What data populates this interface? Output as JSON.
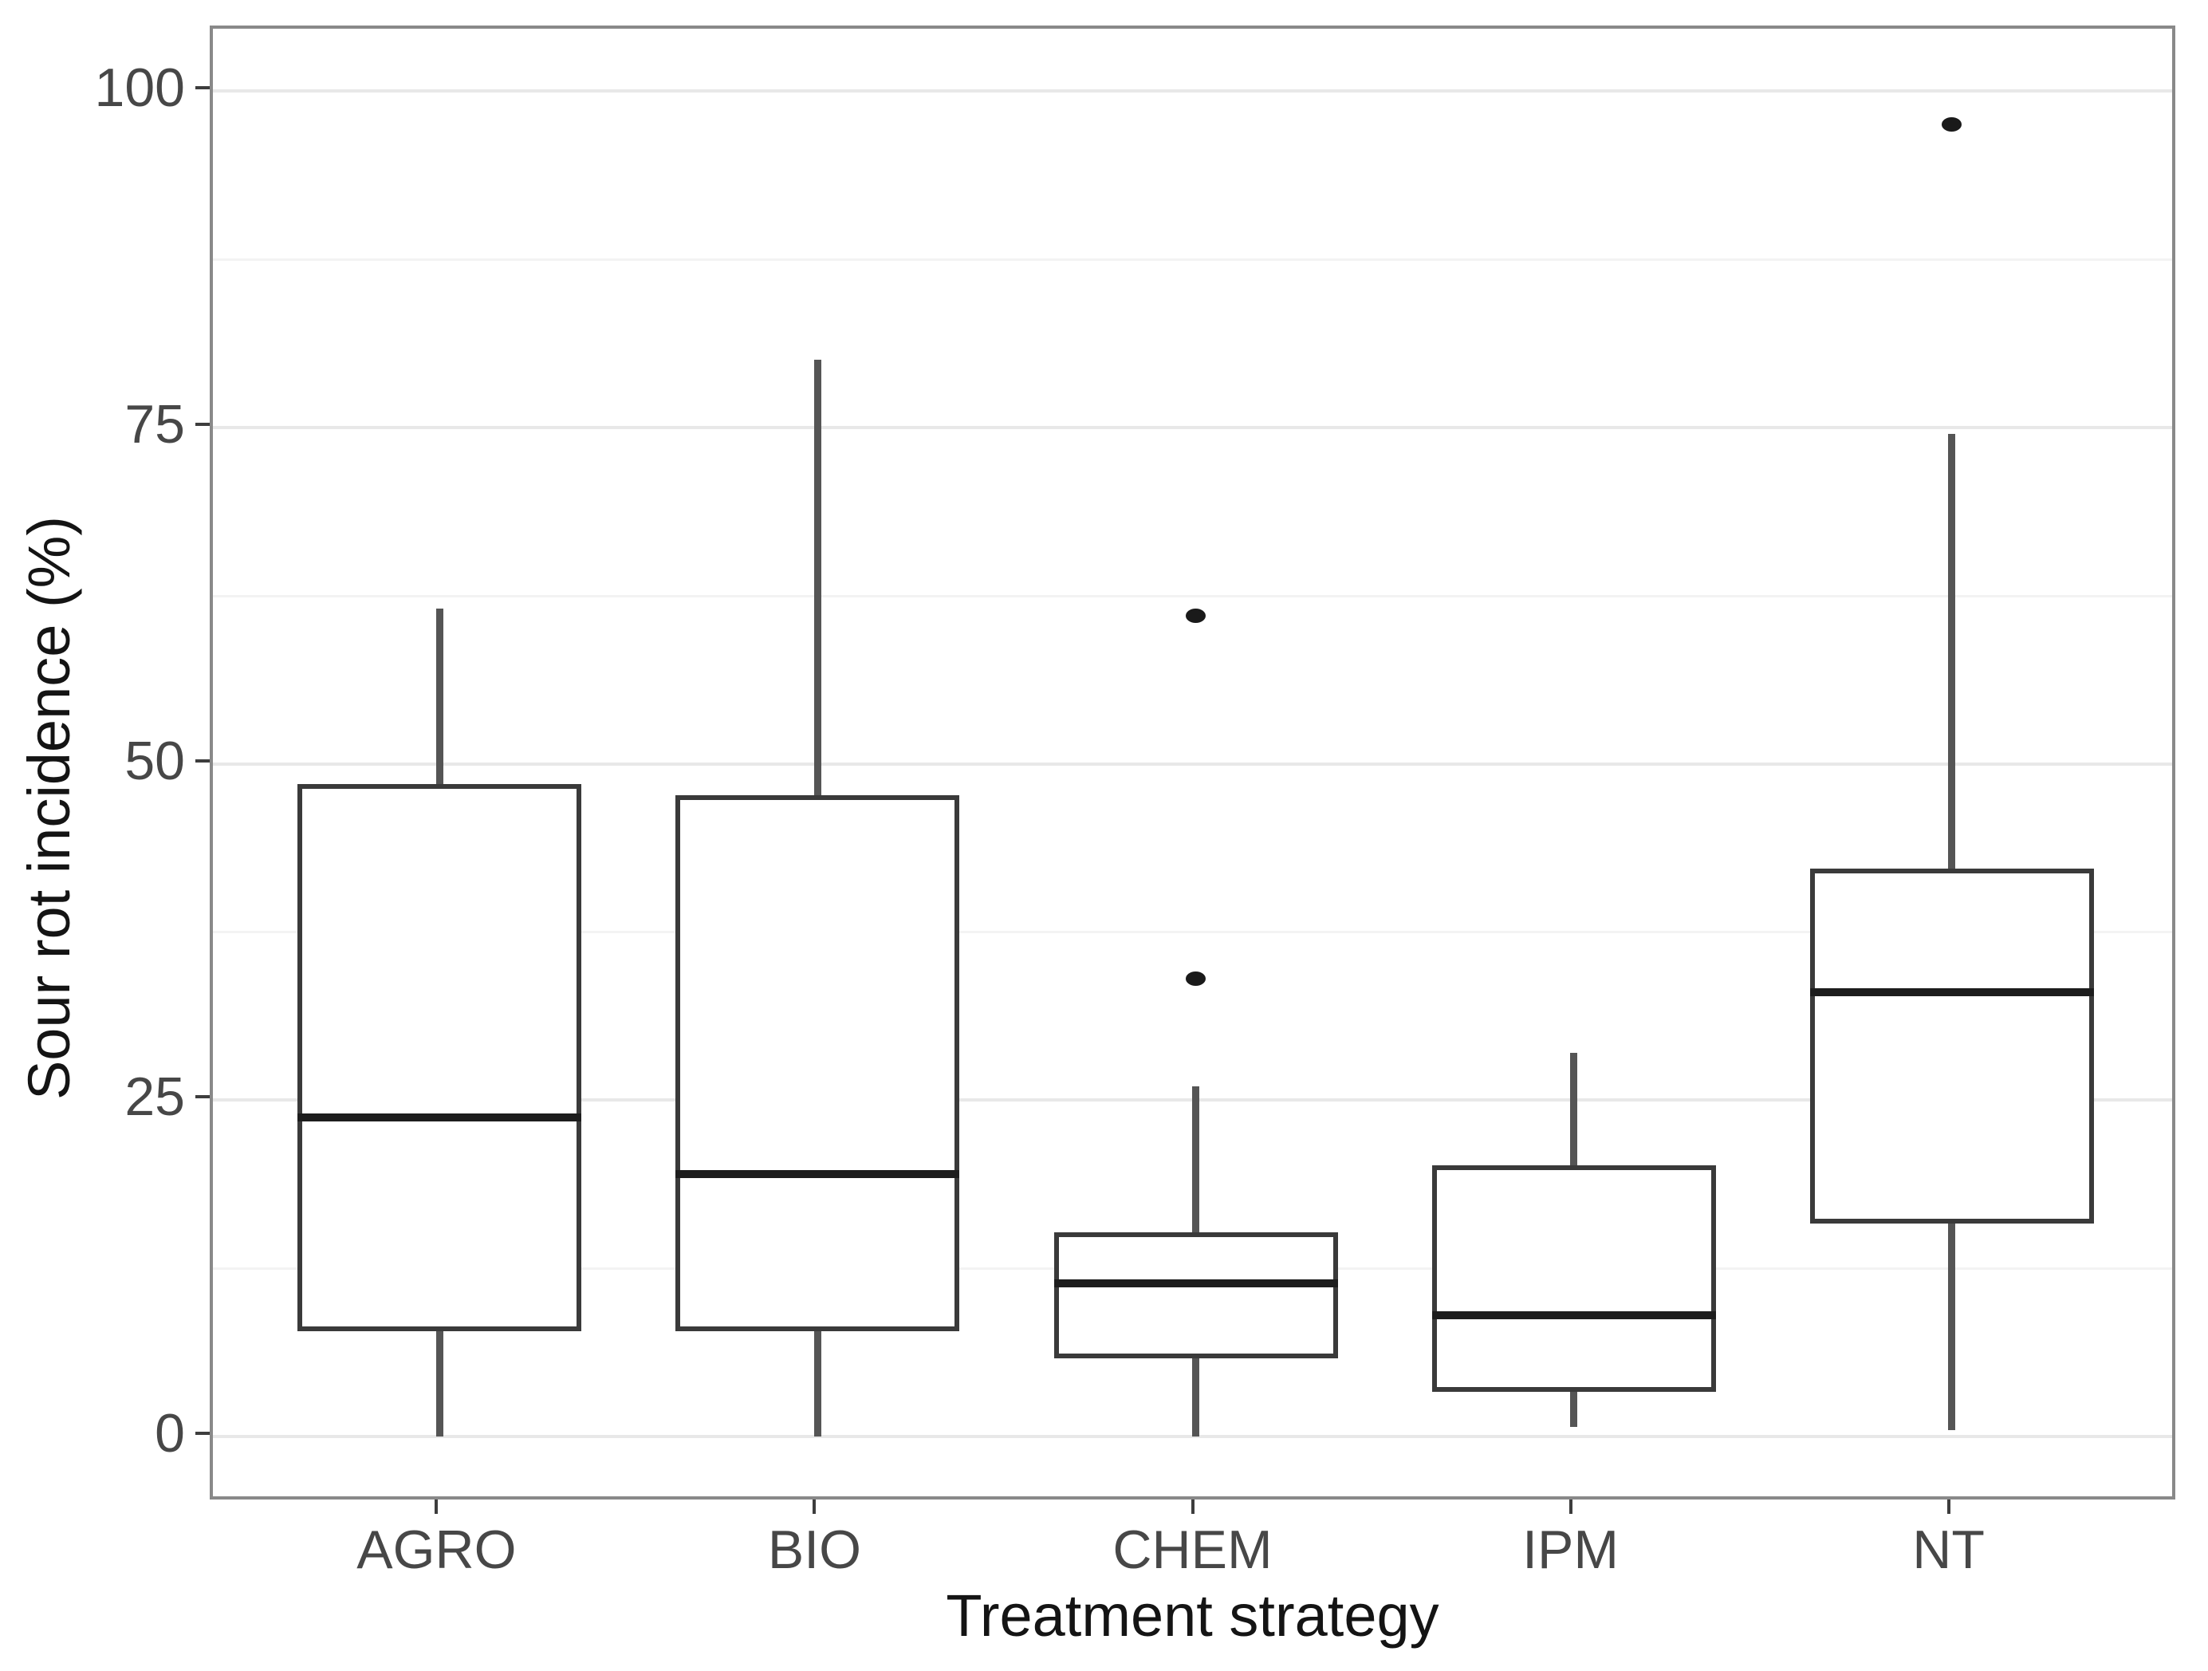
{
  "chart_data": {
    "type": "boxplot",
    "title": "",
    "xlabel": "Treatment strategy",
    "ylabel": "Sour rot incidence (%)",
    "ylim": [
      0,
      100
    ],
    "yticks": [
      0,
      25,
      50,
      75,
      100
    ],
    "minor_gridlines": [
      12.5,
      37.5,
      62.5,
      87.5
    ],
    "grid": "on",
    "legend": "none",
    "categories": [
      "AGRO",
      "BIO",
      "CHEM",
      "IPM",
      "NT"
    ],
    "series": [
      {
        "category": "AGRO",
        "whisker_low": 0,
        "q1": 8,
        "median": 23.7,
        "q3": 48.3,
        "whisker_high": 61.5,
        "outliers": []
      },
      {
        "category": "BIO",
        "whisker_low": 0,
        "q1": 8,
        "median": 19.5,
        "q3": 47.5,
        "whisker_high": 80,
        "outliers": []
      },
      {
        "category": "CHEM",
        "whisker_low": 0,
        "q1": 6,
        "median": 11.4,
        "q3": 15,
        "whisker_high": 26,
        "outliers": [
          34,
          61
        ]
      },
      {
        "category": "IPM",
        "whisker_low": 0.7,
        "q1": 3.5,
        "median": 9,
        "q3": 20,
        "whisker_high": 28.5,
        "outliers": []
      },
      {
        "category": "NT",
        "whisker_low": 0.5,
        "q1": 16,
        "median": 33,
        "q3": 42,
        "whisker_high": 74.5,
        "outliers": [
          97.5
        ]
      }
    ]
  },
  "colors": {
    "background": "#ffffff",
    "panel_border": "#898989",
    "grid_major": "#e8e8e8",
    "grid_minor": "#f3f3f3",
    "whisker": "#555555",
    "box_stroke": "#3a3a3a",
    "box_fill": "#ffffff",
    "median": "#1d1d1d",
    "outlier": "#1a1a1a",
    "tick_mark": "#3d3d3d",
    "tick_label": "#474747",
    "axis_title": "#141414"
  }
}
